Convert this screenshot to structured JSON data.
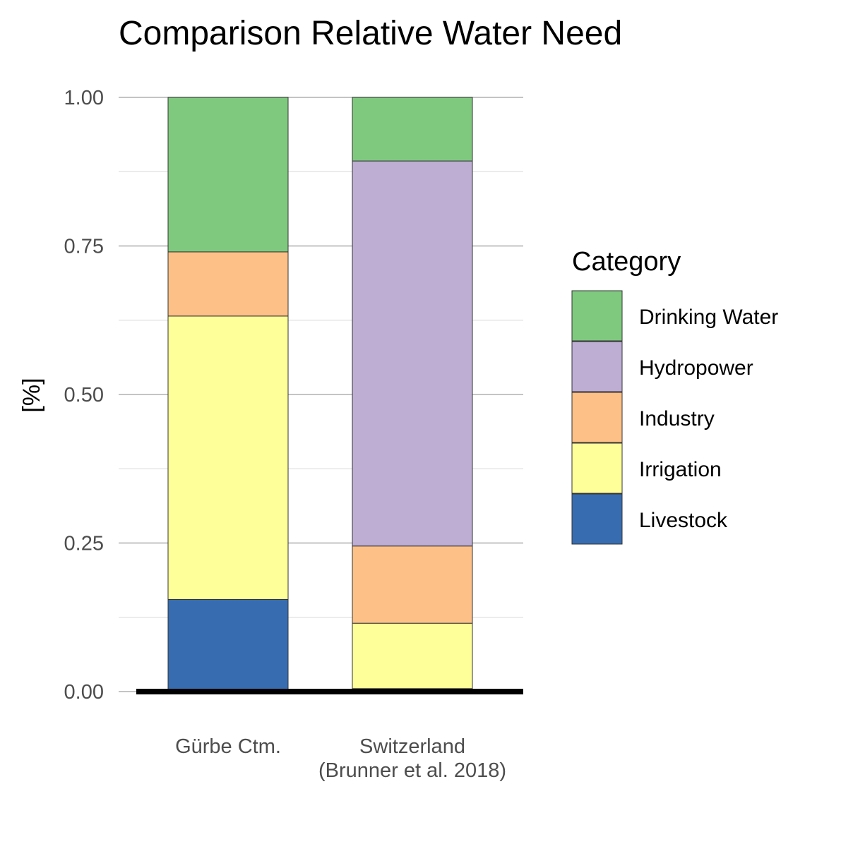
{
  "chart_data": {
    "type": "bar",
    "stacked": true,
    "title": "Comparison Relative Water Need",
    "xlabel": "",
    "ylabel": "[%]",
    "ylim": [
      0,
      1
    ],
    "yticks": [
      "0.00",
      "0.25",
      "0.50",
      "0.75",
      "1.00"
    ],
    "grid": true,
    "legend_position": "right",
    "legend_title": "Category",
    "categories": [
      [
        "Gürbe Ctm."
      ],
      [
        "Switzerland",
        "(Brunner et al. 2018)"
      ]
    ],
    "series": [
      {
        "name": "Livestock",
        "color": "#386CB0",
        "values": [
          0.155,
          0.005
        ]
      },
      {
        "name": "Irrigation",
        "color": "#FFFF99",
        "values": [
          0.477,
          0.11
        ]
      },
      {
        "name": "Industry",
        "color": "#FDC086",
        "values": [
          0.108,
          0.13
        ]
      },
      {
        "name": "Hydropower",
        "color": "#BEAED4",
        "values": [
          0.0,
          0.648
        ]
      },
      {
        "name": "Drinking Water",
        "color": "#7FC97F",
        "values": [
          0.26,
          0.107
        ]
      }
    ],
    "legend_order": [
      "Drinking Water",
      "Hydropower",
      "Industry",
      "Irrigation",
      "Livestock"
    ]
  }
}
